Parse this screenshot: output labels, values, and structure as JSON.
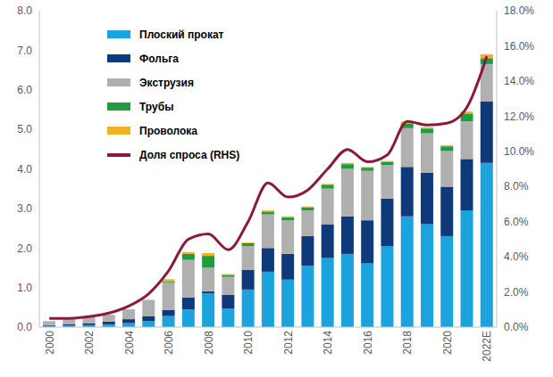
{
  "chart_data": {
    "type": "bar",
    "stacked": true,
    "grid": false,
    "legend": "top-left",
    "categories": [
      "2000",
      null,
      "2002",
      null,
      "2004",
      null,
      "2006",
      null,
      "2008",
      null,
      "2010",
      null,
      "2012",
      null,
      "2014",
      null,
      "2016",
      null,
      "2018",
      null,
      "2020",
      null,
      "2022E"
    ],
    "ylim": [
      0,
      8
    ],
    "yticks": [
      {
        "value": 0,
        "label": "0.0"
      },
      {
        "value": 1,
        "label": "1.0"
      },
      {
        "value": 2,
        "label": "2.0"
      },
      {
        "value": 3,
        "label": "3.0"
      },
      {
        "value": 4,
        "label": "4.0"
      },
      {
        "value": 5,
        "label": "5.0"
      },
      {
        "value": 6,
        "label": "6.0"
      },
      {
        "value": 7,
        "label": "7.0"
      },
      {
        "value": 8,
        "label": "8.0"
      }
    ],
    "y2lim": [
      0,
      18
    ],
    "y2ticks": [
      {
        "value": 0,
        "label": "0.0%"
      },
      {
        "value": 2,
        "label": "2.0%"
      },
      {
        "value": 4,
        "label": "4.0%"
      },
      {
        "value": 6,
        "label": "6.0%"
      },
      {
        "value": 8,
        "label": "8.0%"
      },
      {
        "value": 10,
        "label": "10.0%"
      },
      {
        "value": 12,
        "label": "12.0%"
      },
      {
        "value": 14,
        "label": "14.0%"
      },
      {
        "value": 16,
        "label": "16.0%"
      },
      {
        "value": 18,
        "label": "18.0%"
      }
    ],
    "series": [
      {
        "name": "Плоский прокат",
        "type": "bar",
        "color": "#1aa3dd",
        "values": [
          0.03,
          0.04,
          0.05,
          0.07,
          0.1,
          0.15,
          0.28,
          0.45,
          0.85,
          0.47,
          0.95,
          1.4,
          1.2,
          1.55,
          1.75,
          1.85,
          1.62,
          2.05,
          2.8,
          2.6,
          2.3,
          2.95,
          4.15
        ]
      },
      {
        "name": "Фольга",
        "type": "bar",
        "color": "#0e3a7a",
        "values": [
          0.02,
          0.03,
          0.05,
          0.07,
          0.1,
          0.12,
          0.15,
          0.3,
          0.05,
          0.35,
          0.5,
          0.6,
          0.65,
          0.75,
          0.85,
          0.95,
          1.08,
          1.2,
          1.25,
          1.3,
          1.25,
          1.3,
          1.55
        ]
      },
      {
        "name": "Экструзия",
        "type": "bar",
        "color": "#b0b0b0",
        "values": [
          0.1,
          0.13,
          0.15,
          0.17,
          0.25,
          0.42,
          0.7,
          0.95,
          0.6,
          0.45,
          0.6,
          0.85,
          0.85,
          0.65,
          0.9,
          1.2,
          1.25,
          0.85,
          0.98,
          1.0,
          0.9,
          0.95,
          0.95
        ]
      },
      {
        "name": "Трубы",
        "type": "bar",
        "color": "#1f9c3f",
        "values": [
          0,
          0,
          0,
          0,
          0,
          0,
          0.03,
          0.15,
          0.3,
          0.05,
          0.07,
          0.07,
          0.07,
          0.08,
          0.1,
          0.12,
          0.08,
          0.08,
          0.12,
          0.12,
          0.12,
          0.2,
          0.15
        ]
      },
      {
        "name": "Проволока",
        "type": "bar",
        "color": "#f0b322",
        "values": [
          0,
          0,
          0,
          0,
          0,
          0,
          0.05,
          0.05,
          0.07,
          0.02,
          0.02,
          0.03,
          0.03,
          0.02,
          0.02,
          0.03,
          0.02,
          0.02,
          0.05,
          0.03,
          0.03,
          0.05,
          0.1
        ]
      },
      {
        "name": "Доля спроса (RHS)",
        "type": "line",
        "axis": "y2",
        "color": "#8b1a3a",
        "values": [
          0.5,
          0.5,
          0.6,
          0.8,
          1.2,
          1.9,
          3.2,
          5.0,
          5.3,
          4.4,
          6.0,
          8.2,
          7.4,
          7.8,
          9.0,
          10.1,
          9.4,
          9.8,
          11.7,
          11.5,
          11.6,
          12.5,
          15.4
        ]
      }
    ]
  }
}
